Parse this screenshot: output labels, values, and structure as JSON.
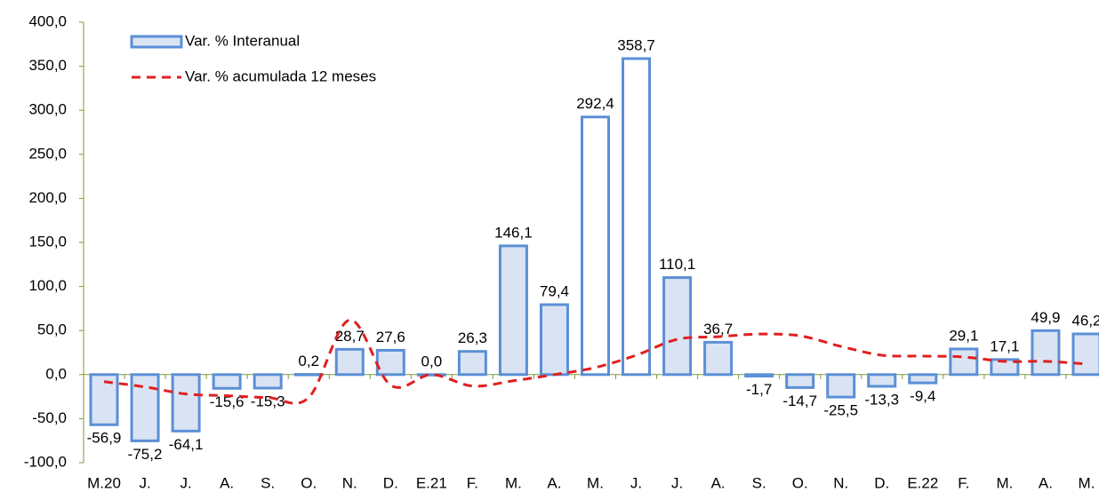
{
  "chart_data": {
    "type": "bar",
    "categories": [
      "M.20",
      "J.",
      "J.",
      "A.",
      "S.",
      "O.",
      "N.",
      "D.",
      "E.21",
      "F.",
      "M.",
      "A.",
      "M.",
      "J.",
      "J.",
      "A.",
      "S.",
      "O.",
      "N.",
      "D.",
      "E.22",
      "F.",
      "M.",
      "A.",
      "M."
    ],
    "ylim": [
      -100,
      400
    ],
    "yticks": [
      {
        "value": -100,
        "label": "-100,0"
      },
      {
        "value": -50,
        "label": "-50,0"
      },
      {
        "value": 0,
        "label": "0,0"
      },
      {
        "value": 50,
        "label": "50,0"
      },
      {
        "value": 100,
        "label": "100,0"
      },
      {
        "value": 150,
        "label": "150,0"
      },
      {
        "value": 200,
        "label": "200,0"
      },
      {
        "value": 250,
        "label": "250,0"
      },
      {
        "value": 300,
        "label": "300,0"
      },
      {
        "value": 350,
        "label": "350,0"
      },
      {
        "value": 400,
        "label": "400,0"
      }
    ],
    "series": [
      {
        "name": "Var. % Interanual",
        "type": "bar",
        "color": "#dae3f3",
        "edge_color": "#5b8fd6",
        "values": [
          -56.9,
          -75.2,
          -64.1,
          -15.6,
          -15.3,
          0.2,
          28.7,
          27.6,
          0.0,
          26.3,
          146.1,
          79.4,
          292.4,
          358.7,
          110.1,
          36.7,
          -1.7,
          -14.7,
          -25.5,
          -13.3,
          -9.4,
          29.1,
          17.1,
          49.9,
          46.2
        ],
        "value_labels": [
          "-56,9",
          "-75,2",
          "-64,1",
          "-15,6",
          "-15,3",
          "0,2",
          "28,7",
          "27,6",
          "0,0",
          "26,3",
          "146,1",
          "79,4",
          "292,4",
          "358,7",
          "110,1",
          "36,7",
          "-1,7",
          "-14,7",
          "-25,5",
          "-13,3",
          "-9,4",
          "29,1",
          "17,1",
          "49,9",
          "46,2"
        ]
      },
      {
        "name": "Var. % acumulada 12 meses",
        "type": "line",
        "color": "#e02020",
        "dashed": true,
        "values": [
          -8,
          -14,
          -22,
          -24,
          -26,
          -26,
          62,
          -12,
          0,
          -13,
          -7,
          0,
          8,
          22,
          40,
          43,
          46,
          44,
          32,
          22,
          21,
          20,
          15,
          15,
          12
        ]
      }
    ]
  }
}
